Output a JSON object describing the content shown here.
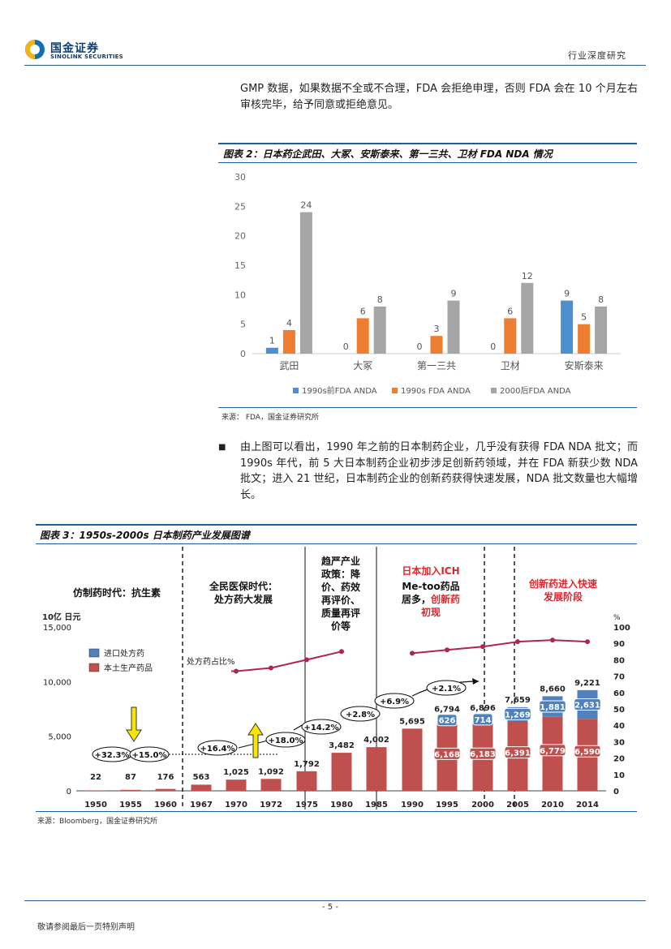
{
  "header": {
    "logo_cn": "国金证券",
    "logo_en": "SINOLINK SECURITIES",
    "section": "行业深度研究"
  },
  "intro_paragraph": "GMP 数据，如果数据不全或不合理，FDA 会拒绝申理，否则 FDA 会在 10 个月左右审核完毕，给予同意或拒绝意见。",
  "figure2": {
    "title": "图表 2：日本药企武田、大冢、安斯泰来、第一三共、卫材 FDA NDA 情况",
    "source": "来源：  FDA，国金证券研究所"
  },
  "bullet_paragraph": "由上图可以看出，1990 年之前的日本制药企业，几乎没有获得 FDA NDA 批文；而 1990s 年代，前 5 大日本制药企业初步涉足创新药领域，并在 FDA 新获少数 NDA 批文；进入 21 世纪，日本制药企业的创新药获得快速发展，NDA 批文数量也大幅增长。",
  "figure3": {
    "title": "图表 3：1950s-2000s 日本制药产业发展图谱",
    "source": "来源：Bloomberg，国金证券研究所",
    "era_labels": [
      "仿制药时代：抗生素",
      "全民医保时代：处方药大发展",
      "趋严产业政策：降价、药效再评价、质量再评价等",
      "日本加入ICH",
      "Me-too药品居多，",
      "创新药初现",
      "创新药进入快速发展阶段"
    ],
    "left_unit": "10亿 日元",
    "right_unit": "%",
    "legend": [
      "进口处方药",
      "本土生产药品"
    ],
    "ratio_label": "处方药占比%",
    "growth_labels": [
      "+32.3%",
      "+15.0%",
      "+16.4%",
      "+18.0%",
      "+14.2%",
      "+2.8%",
      "+6.9%",
      "+2.1%"
    ]
  },
  "chart_data": [
    {
      "type": "bar",
      "title": "",
      "categories": [
        "武田",
        "大冢",
        "第一三共",
        "卫材",
        "安斯泰来"
      ],
      "series": [
        {
          "name": "1990s前FDA ANDA",
          "color": "#4e8fd2",
          "values": [
            1,
            0,
            0,
            0,
            9
          ]
        },
        {
          "name": "1990s FDA ANDA",
          "color": "#ed7d31",
          "values": [
            4,
            6,
            3,
            6,
            5
          ]
        },
        {
          "name": "2000后FDA ANDA",
          "color": "#a5a5a5",
          "values": [
            24,
            8,
            9,
            12,
            8
          ]
        }
      ],
      "ylim": [
        0,
        30
      ],
      "yticks": [
        0,
        5,
        10,
        15,
        20,
        25,
        30
      ],
      "legend_position": "bottom"
    },
    {
      "type": "bar",
      "stacked": true,
      "categories": [
        "1950",
        "1955",
        "1960",
        "1967",
        "1970",
        "1972",
        "1975",
        "1980",
        "1985",
        "1990",
        "1995",
        "2000",
        "2005",
        "2010",
        "2014"
      ],
      "totals": [
        "22",
        "87",
        "176",
        "563",
        "1,025",
        "1,092",
        "1,792",
        "3,482",
        "4,002",
        "5,695",
        "6,794",
        "6,896",
        "7,659",
        "8,660",
        "9,221"
      ],
      "total_values": [
        22,
        87,
        176,
        563,
        1025,
        1092,
        1792,
        3482,
        4002,
        5695,
        6794,
        6896,
        7659,
        8660,
        9221
      ],
      "series": [
        {
          "name": "本土生产药品",
          "color": "#c0504d",
          "values": [
            22,
            87,
            176,
            563,
            1025,
            1092,
            1792,
            3482,
            4002,
            5695,
            6168,
            6183,
            6391,
            6779,
            6590
          ],
          "labels": [
            "",
            "",
            "",
            "",
            "",
            "",
            "",
            "",
            "",
            "",
            "6,168",
            "6,183",
            "6,391",
            "6,779",
            "6,590"
          ]
        },
        {
          "name": "进口处方药",
          "color": "#4f81bd",
          "values": [
            0,
            0,
            0,
            0,
            0,
            0,
            0,
            0,
            0,
            0,
            626,
            714,
            1269,
            1881,
            2631
          ],
          "labels": [
            "",
            "",
            "",
            "",
            "",
            "",
            "",
            "",
            "",
            "",
            "626",
            "714",
            "1,269",
            "1,881",
            "2,631"
          ]
        }
      ],
      "line_series": {
        "name": "处方药占比%",
        "color": "#b0235a",
        "segments": [
          {
            "x": [
              "1970",
              "1972",
              "1975",
              "1980"
            ],
            "values": [
              73,
              75,
              80,
              85
            ]
          },
          {
            "x": [
              "1990",
              "1995",
              "2000",
              "2005",
              "2010",
              "2014"
            ],
            "values": [
              84,
              86,
              88,
              91,
              92,
              91
            ]
          }
        ]
      },
      "ylim": [
        0,
        15000
      ],
      "yticks": [
        "0",
        "5,000",
        "10,000",
        "15,000"
      ],
      "y2lim": [
        0,
        100
      ],
      "y2ticks": [
        "0",
        "10",
        "20",
        "30",
        "40",
        "50",
        "60",
        "70",
        "80",
        "90",
        "100"
      ]
    }
  ],
  "footer": {
    "page": "- 5 -",
    "disclaimer": "敬请参阅最后一页特别声明"
  }
}
